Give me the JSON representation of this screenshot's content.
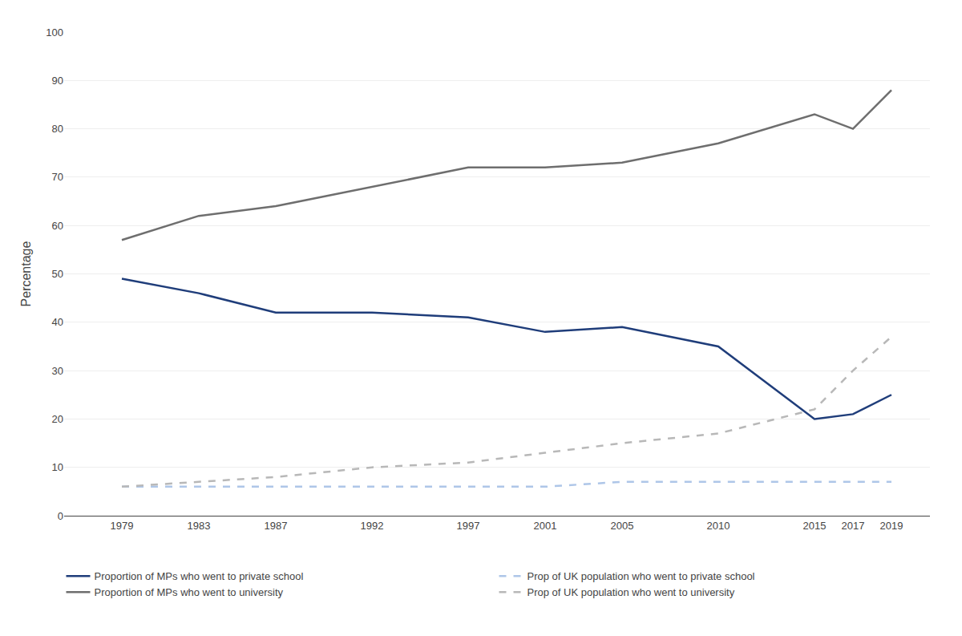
{
  "chart_data": {
    "type": "line",
    "ylabel": "Percentage",
    "x": [
      1979,
      1983,
      1987,
      1992,
      1997,
      2001,
      2005,
      2010,
      2015,
      2017,
      2019
    ],
    "xlim": [
      1976,
      2021
    ],
    "xticks": [
      1979,
      1983,
      1987,
      1992,
      1997,
      2001,
      2005,
      2010,
      2015,
      2017,
      2019
    ],
    "ylim": [
      0,
      100
    ],
    "yticks": [
      0,
      10,
      20,
      30,
      40,
      50,
      60,
      70,
      80,
      90,
      100
    ],
    "grid": "y",
    "legend": "bottom",
    "series": [
      {
        "name": "Proportion of MPs who went to private school",
        "color": "#1f3d7a",
        "line_style": "solid",
        "values": [
          49,
          46,
          42,
          42,
          41,
          38,
          39,
          35,
          20,
          21,
          25
        ]
      },
      {
        "name": "Prop of UK population who went to private school",
        "color": "#aec6e8",
        "line_style": "dashed",
        "values": [
          6,
          6,
          6,
          6,
          6,
          6,
          7,
          7,
          7,
          7,
          7
        ]
      },
      {
        "name": "Proportion of MPs who went to university",
        "color": "#6e6e6e",
        "line_style": "solid",
        "values": [
          57,
          62,
          64,
          68,
          72,
          72,
          73,
          77,
          83,
          80,
          88
        ]
      },
      {
        "name": "Prop of UK population who went to university",
        "color": "#b8b8b8",
        "line_style": "dashed",
        "values": [
          6,
          7,
          8,
          10,
          11,
          13,
          15,
          17,
          22,
          30,
          37
        ]
      }
    ]
  }
}
